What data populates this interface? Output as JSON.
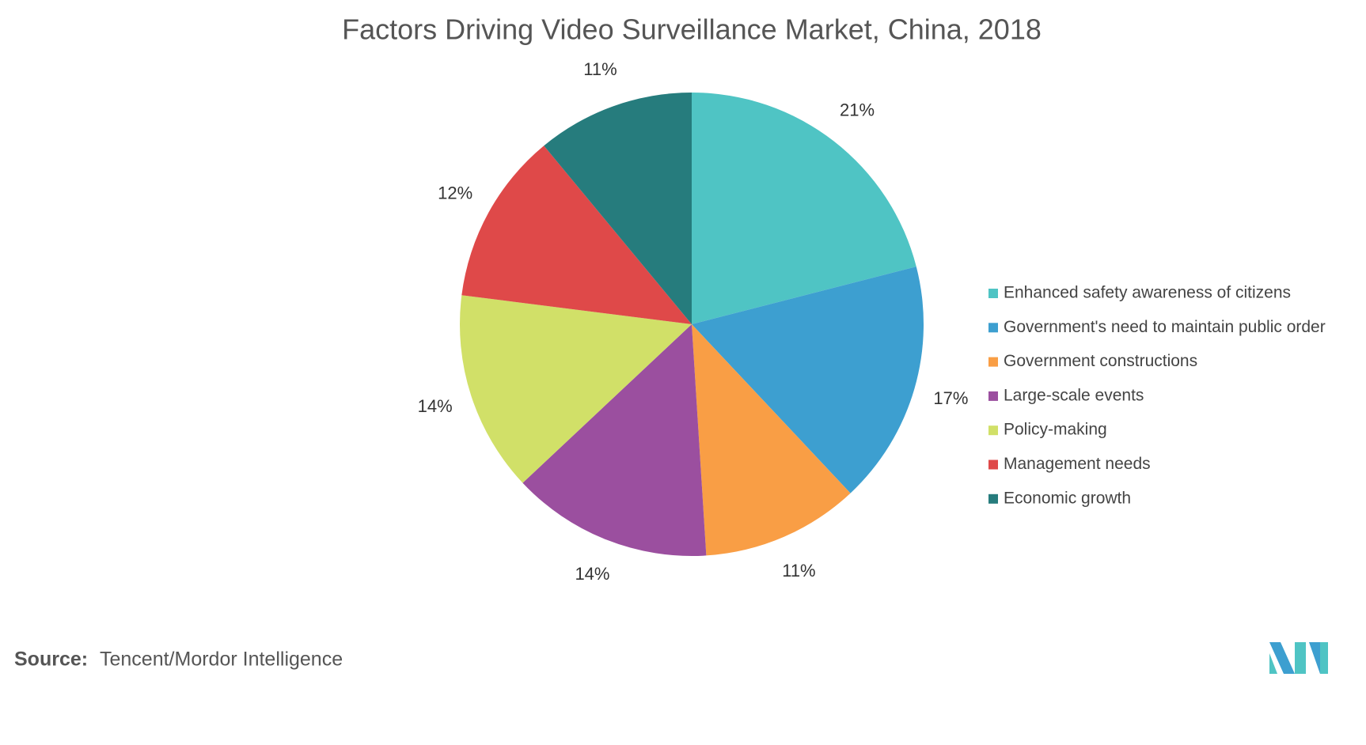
{
  "chart_data": {
    "type": "pie",
    "title": "Factors Driving Video Surveillance Market, China, 2018",
    "categories": [
      "Enhanced safety awareness of citizens",
      "Government's need to maintain public order",
      "Government constructions",
      "Large-scale events",
      "Policy-making",
      "Management needs",
      "Economic growth"
    ],
    "values": [
      21,
      17,
      11,
      14,
      14,
      12,
      11
    ],
    "value_labels": [
      "21%",
      "17%",
      "11%",
      "14%",
      "14%",
      "12%",
      "11%"
    ],
    "colors": [
      "#4fc4c4",
      "#3d9fd0",
      "#f99e45",
      "#9b4f9f",
      "#d1e068",
      "#df4949",
      "#267c7d"
    ],
    "legend": "right",
    "source_label": "Source:",
    "source": "Tencent/Mordor Intelligence"
  }
}
